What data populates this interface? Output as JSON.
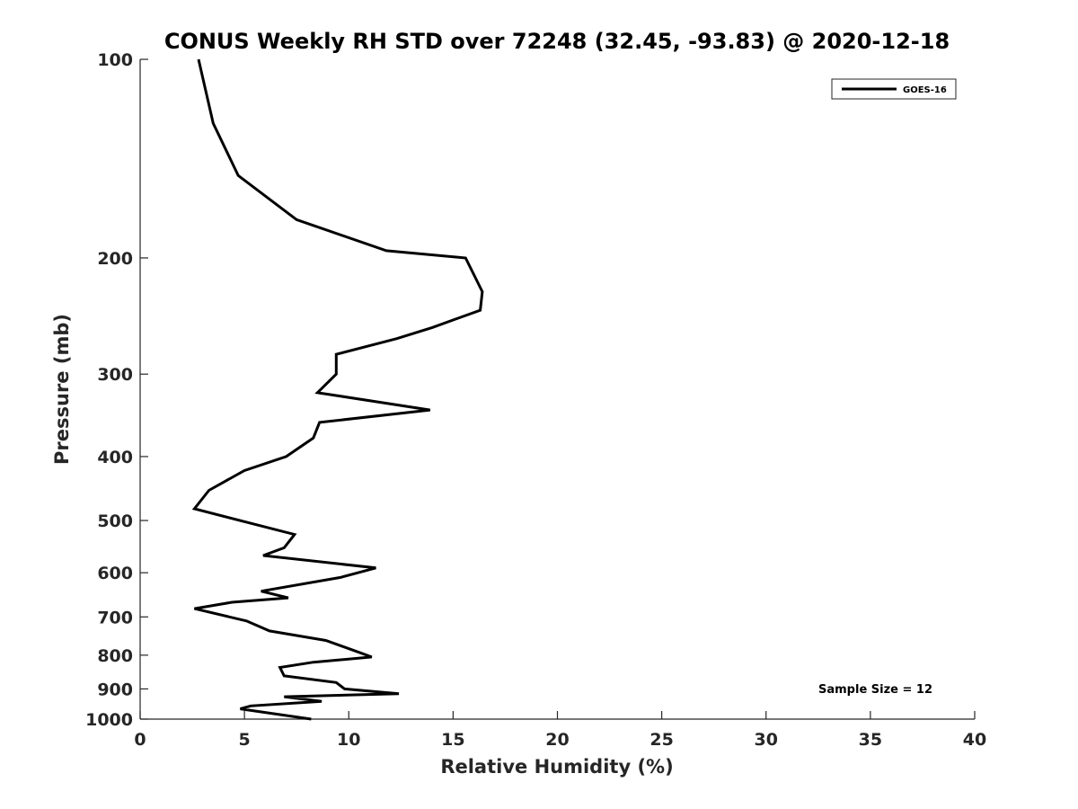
{
  "chart_data": {
    "type": "line",
    "title": "CONUS Weekly RH STD over 72248 (32.45, -93.83) @ 2020-12-18",
    "xlabel": "Relative Humidity (%)",
    "ylabel": "Pressure (mb)",
    "xlim": [
      0,
      40
    ],
    "ylim": [
      100,
      1000
    ],
    "yscale": "log",
    "y_reversed": true,
    "grid": false,
    "legend": "top-right",
    "xticks": [
      0,
      5,
      10,
      15,
      20,
      25,
      30,
      35,
      40
    ],
    "yticks": [
      100,
      200,
      300,
      400,
      500,
      600,
      700,
      800,
      900,
      1000
    ],
    "series": [
      {
        "name": "GOES-16",
        "color": "#000000",
        "points": [
          [
            2.8,
            100
          ],
          [
            3.5,
            125
          ],
          [
            4.7,
            150
          ],
          [
            7.5,
            175
          ],
          [
            11.8,
            195
          ],
          [
            15.6,
            200
          ],
          [
            16.4,
            225
          ],
          [
            16.3,
            240
          ],
          [
            14.0,
            255
          ],
          [
            12.3,
            265
          ],
          [
            9.4,
            280
          ],
          [
            9.4,
            300
          ],
          [
            8.5,
            320
          ],
          [
            13.9,
            340
          ],
          [
            8.6,
            355
          ],
          [
            8.3,
            375
          ],
          [
            7.0,
            400
          ],
          [
            5.0,
            420
          ],
          [
            3.3,
            450
          ],
          [
            2.6,
            480
          ],
          [
            7.4,
            525
          ],
          [
            6.9,
            550
          ],
          [
            5.9,
            565
          ],
          [
            11.3,
            590
          ],
          [
            9.6,
            610
          ],
          [
            5.8,
            640
          ],
          [
            7.1,
            655
          ],
          [
            4.4,
            665
          ],
          [
            2.6,
            680
          ],
          [
            5.1,
            710
          ],
          [
            6.2,
            735
          ],
          [
            8.9,
            760
          ],
          [
            10.4,
            790
          ],
          [
            11.1,
            805
          ],
          [
            8.3,
            820
          ],
          [
            6.7,
            835
          ],
          [
            6.9,
            860
          ],
          [
            9.4,
            880
          ],
          [
            9.8,
            900
          ],
          [
            12.4,
            915
          ],
          [
            6.9,
            925
          ],
          [
            8.7,
            940
          ],
          [
            5.3,
            955
          ],
          [
            4.8,
            965
          ],
          [
            8.2,
            1000
          ]
        ]
      }
    ],
    "annotations": [
      "Sample Size = 12"
    ]
  }
}
